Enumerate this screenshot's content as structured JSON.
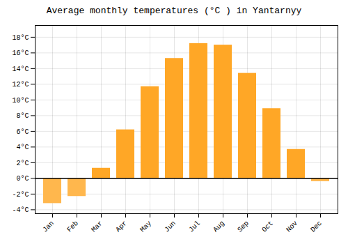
{
  "chart_data": {
    "type": "bar",
    "title": "Average monthly temperatures (°C ) in Yantarnyy",
    "categories": [
      "Jan",
      "Feb",
      "Mar",
      "Apr",
      "May",
      "Jun",
      "Jul",
      "Aug",
      "Sep",
      "Oct",
      "Nov",
      "Dec"
    ],
    "values": [
      -3.2,
      -2.3,
      1.3,
      6.2,
      11.7,
      15.3,
      17.2,
      17.0,
      13.4,
      8.9,
      3.7,
      -0.4
    ],
    "colors": [
      "#FFB74D",
      "#FFB74D",
      "#FFA726",
      "#FFA726",
      "#FFA726",
      "#FFA726",
      "#FFA726",
      "#FFA726",
      "#FFA726",
      "#FFA726",
      "#FFA726",
      "#FFB74D"
    ],
    "ylim": [
      -4.5,
      19.5
    ],
    "yticks": [
      {
        "value": -4,
        "label": "-4°C"
      },
      {
        "value": -2,
        "label": "-2°C"
      },
      {
        "value": 0,
        "label": "0°C"
      },
      {
        "value": 2,
        "label": "2°C"
      },
      {
        "value": 4,
        "label": "4°C"
      },
      {
        "value": 6,
        "label": "6°C"
      },
      {
        "value": 8,
        "label": "8°C"
      },
      {
        "value": 10,
        "label": "10°C"
      },
      {
        "value": 12,
        "label": "12°C"
      },
      {
        "value": 14,
        "label": "14°C"
      },
      {
        "value": 16,
        "label": "16°C"
      },
      {
        "value": 18,
        "label": "18°C"
      }
    ],
    "grid": true
  }
}
